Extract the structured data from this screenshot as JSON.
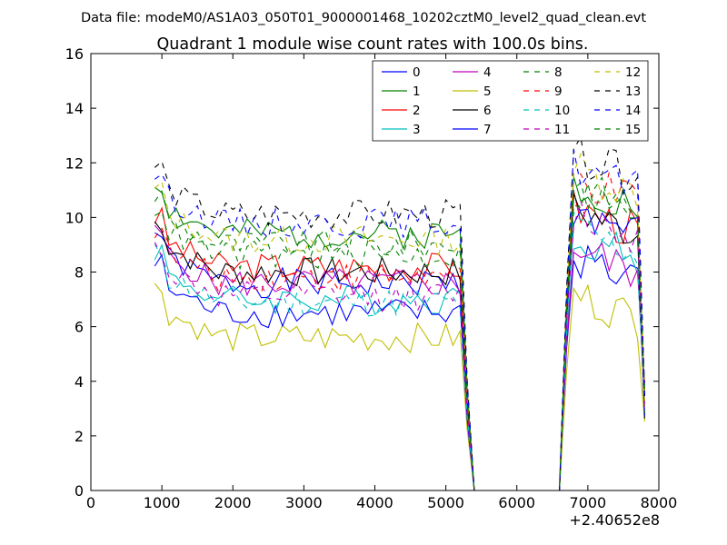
{
  "suptitle": "Data file: modeM0/AS1A03_050T01_9000001468_10202cztM0_level2_quad_clean.evt",
  "chart_data": {
    "type": "line",
    "title": "Quadrant 1 module wise count rates with 100.0s bins.",
    "xlabel": "",
    "ylabel": "",
    "xlim": [
      0,
      8000
    ],
    "ylim": [
      0,
      16
    ],
    "x_ticks": [
      "0",
      "1000",
      "2000",
      "3000",
      "4000",
      "5000",
      "6000",
      "7000",
      "8000"
    ],
    "y_ticks": [
      "0",
      "2",
      "4",
      "6",
      "8",
      "10",
      "12",
      "14",
      "16"
    ],
    "x_offset_label": "+2.40652e8",
    "legend_position": "top-right",
    "x": [
      900,
      1000,
      1100,
      1200,
      1300,
      1400,
      1500,
      1600,
      1700,
      1800,
      1900,
      2000,
      2100,
      2200,
      2300,
      2400,
      2500,
      2600,
      2700,
      2800,
      2900,
      3000,
      3100,
      3200,
      3300,
      3400,
      3500,
      3600,
      3700,
      3800,
      3900,
      4000,
      4100,
      4200,
      4300,
      4400,
      4500,
      4600,
      4700,
      4800,
      4900,
      5000,
      5100,
      5200,
      5300,
      5400,
      5500,
      5600,
      5700,
      5800,
      5900,
      6000,
      6100,
      6200,
      6300,
      6400,
      6500,
      6600,
      6700,
      6800,
      6900,
      7000,
      7100,
      7200,
      7300,
      7400,
      7500,
      7600,
      7700,
      7800
    ],
    "series": [
      {
        "name": "0",
        "color": "#0000ff",
        "dash": "solid",
        "base": 7.6,
        "high": 8.6,
        "seed": 1
      },
      {
        "name": "1",
        "color": "#008000",
        "dash": "solid",
        "base": 9.4,
        "high": 11.3,
        "seed": 2
      },
      {
        "name": "2",
        "color": "#ff0000",
        "dash": "solid",
        "base": 8.2,
        "high": 10.4,
        "seed": 3
      },
      {
        "name": "3",
        "color": "#00bfbf",
        "dash": "solid",
        "base": 7.0,
        "high": 9.4,
        "seed": 4
      },
      {
        "name": "4",
        "color": "#bf00bf",
        "dash": "solid",
        "base": 7.6,
        "high": 8.9,
        "seed": 5
      },
      {
        "name": "5",
        "color": "#bfbf00",
        "dash": "solid",
        "base": 5.6,
        "high": 7.2,
        "seed": 6
      },
      {
        "name": "6",
        "color": "#000000",
        "dash": "solid",
        "base": 8.0,
        "high": 10.3,
        "seed": 7
      },
      {
        "name": "7",
        "color": "#0000ff",
        "dash": "solid",
        "base": 6.5,
        "high": 10.3,
        "seed": 8
      },
      {
        "name": "8",
        "color": "#008000",
        "dash": "dashed",
        "base": 9.0,
        "high": 11.2,
        "seed": 9
      },
      {
        "name": "9",
        "color": "#ff0000",
        "dash": "dashed",
        "base": 7.8,
        "high": 11.4,
        "seed": 10
      },
      {
        "name": "10",
        "color": "#00bfbf",
        "dash": "dashed",
        "base": 6.9,
        "high": 9.6,
        "seed": 11
      },
      {
        "name": "11",
        "color": "#bf00bf",
        "dash": "dashed",
        "base": 7.1,
        "high": 10.2,
        "seed": 12
      },
      {
        "name": "12",
        "color": "#bfbf00",
        "dash": "dashed",
        "base": 9.2,
        "high": 11.8,
        "seed": 13
      },
      {
        "name": "13",
        "color": "#000000",
        "dash": "dashed",
        "base": 10.1,
        "high": 12.3,
        "seed": 14
      },
      {
        "name": "14",
        "color": "#0000ff",
        "dash": "dashed",
        "base": 9.8,
        "high": 11.9,
        "seed": 15
      },
      {
        "name": "15",
        "color": "#008000",
        "dash": "dashed",
        "base": 8.6,
        "high": 11.0,
        "seed": 16
      }
    ]
  }
}
